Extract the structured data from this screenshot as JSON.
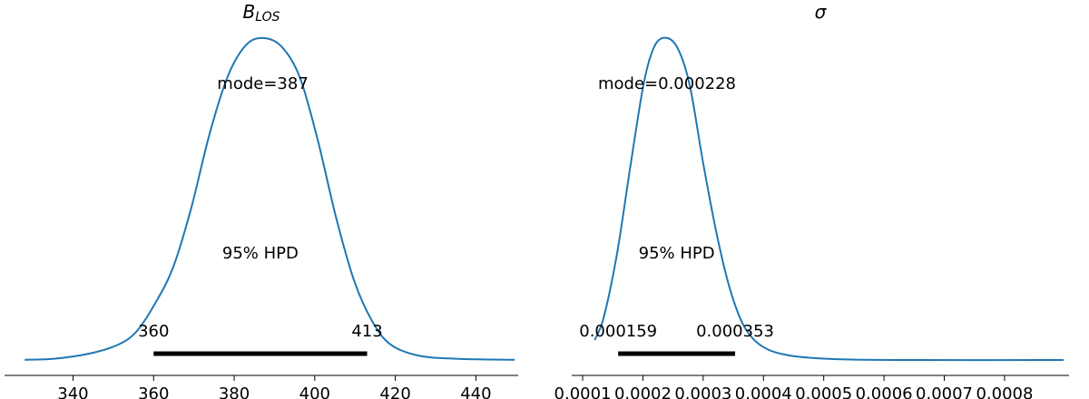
{
  "chart_data": [
    {
      "type": "line",
      "title": "B",
      "title_subscript": "LOS",
      "color": "#1f77b4",
      "x": [
        328,
        335.5,
        344.5,
        351.3,
        355.8,
        360.3,
        364.8,
        369.3,
        373.8,
        378.3,
        382.8,
        387.1,
        391.8,
        396.3,
        400.8,
        405.3,
        409.8,
        414.3,
        418.8,
        425.5,
        434.5,
        449.6
      ],
      "values": [
        0.0001,
        0.0002,
        0.0007,
        0.0015,
        0.0027,
        0.0052,
        0.0085,
        0.0139,
        0.0206,
        0.0259,
        0.0288,
        0.0295,
        0.0287,
        0.0259,
        0.0201,
        0.0131,
        0.0073,
        0.0036,
        0.0015,
        0.0005,
        0.0002,
        0.0001
      ],
      "xlim": [
        323,
        450.5
      ],
      "xticks": [
        340,
        360,
        380,
        400,
        420,
        440
      ],
      "ylim": [
        -0.00133,
        0.0309
      ],
      "mode_label": "mode=387",
      "hpd_label": "95% HPD",
      "hpd": [
        360,
        413
      ]
    },
    {
      "type": "line",
      "title": "σ",
      "color": "#1f77b4",
      "x": [
        0.00012,
        0.000135,
        0.000157,
        0.00018,
        0.000202,
        0.00022,
        0.00024,
        0.000259,
        0.000278,
        0.0003,
        0.000323,
        0.000345,
        0.000368,
        0.000398,
        0.000443,
        0.000518,
        0.000639,
        0.000898
      ],
      "values": [
        517,
        1079,
        2652,
        4899,
        6921,
        7820,
        8000,
        7707,
        6808,
        4899,
        3101,
        1753,
        854,
        360,
        135,
        45,
        22,
        22
      ],
      "xlim": [
        8.19e-05,
        0.000907
      ],
      "xticks": [
        0.0001,
        0.0002,
        0.0003,
        0.0004,
        0.0005,
        0.0006,
        0.0007,
        0.0008
      ],
      "ylim": [
        -360,
        8380
      ],
      "mode_label": "mode=0.000228",
      "hpd_label": "95% HPD",
      "hpd": [
        0.000159,
        0.000353
      ]
    }
  ]
}
